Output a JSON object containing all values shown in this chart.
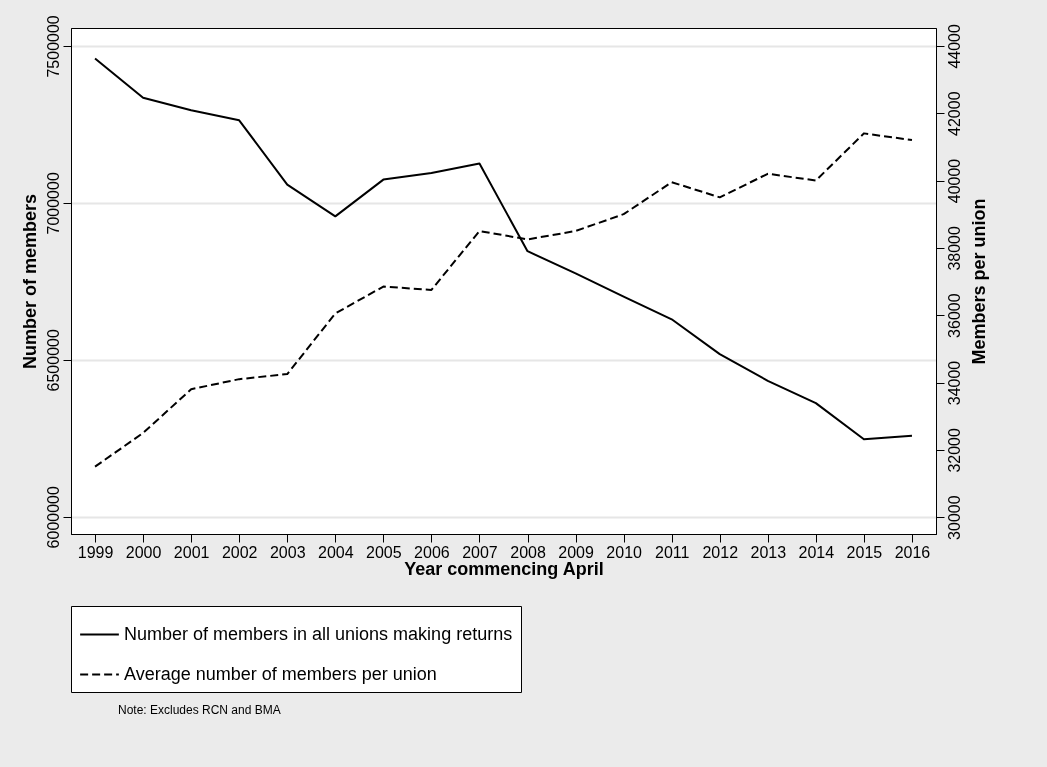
{
  "chart_data": {
    "type": "line",
    "xlabel": "Year commencing April",
    "ylabel": "Number of members",
    "y2label": "Members per union",
    "categories": [
      "1999",
      "2000",
      "2001",
      "2002",
      "2003",
      "2004",
      "2005",
      "2006",
      "2007",
      "2008",
      "2009",
      "2010",
      "2011",
      "2012",
      "2013",
      "2014",
      "2015",
      "2016"
    ],
    "series": [
      {
        "name": "Number of members in all unions making returns",
        "color": "#000000",
        "line_style": "solid",
        "values": [
          7460000,
          7335000,
          7295000,
          7263000,
          7058000,
          6957000,
          7074000,
          7095000,
          7125000,
          6846000,
          6775000,
          6701000,
          6629000,
          6518000,
          6433000,
          6362000,
          6247000,
          6258000
        ]
      },
      {
        "name": "Average number of members per union",
        "color": "#000000",
        "line_style": "dashed",
        "axis": "y2",
        "values": [
          31500,
          32500,
          33800,
          34100,
          34250,
          36050,
          36850,
          36750,
          38500,
          38250,
          38500,
          39000,
          39950,
          39500,
          40200,
          40000,
          41400,
          41200
        ]
      }
    ],
    "ylim": [
      5945000,
      7557000
    ],
    "yticks": [
      6000000,
      6500000,
      7000000,
      7500000
    ],
    "y2lim": [
      29500,
      44530
    ],
    "y2ticks": [
      30000,
      32000,
      34000,
      36000,
      38000,
      40000,
      42000,
      44000
    ],
    "grid": "y",
    "legend": "bottom",
    "marker": "none",
    "annotations": [
      "Note: Excludes RCN and BMA"
    ]
  }
}
